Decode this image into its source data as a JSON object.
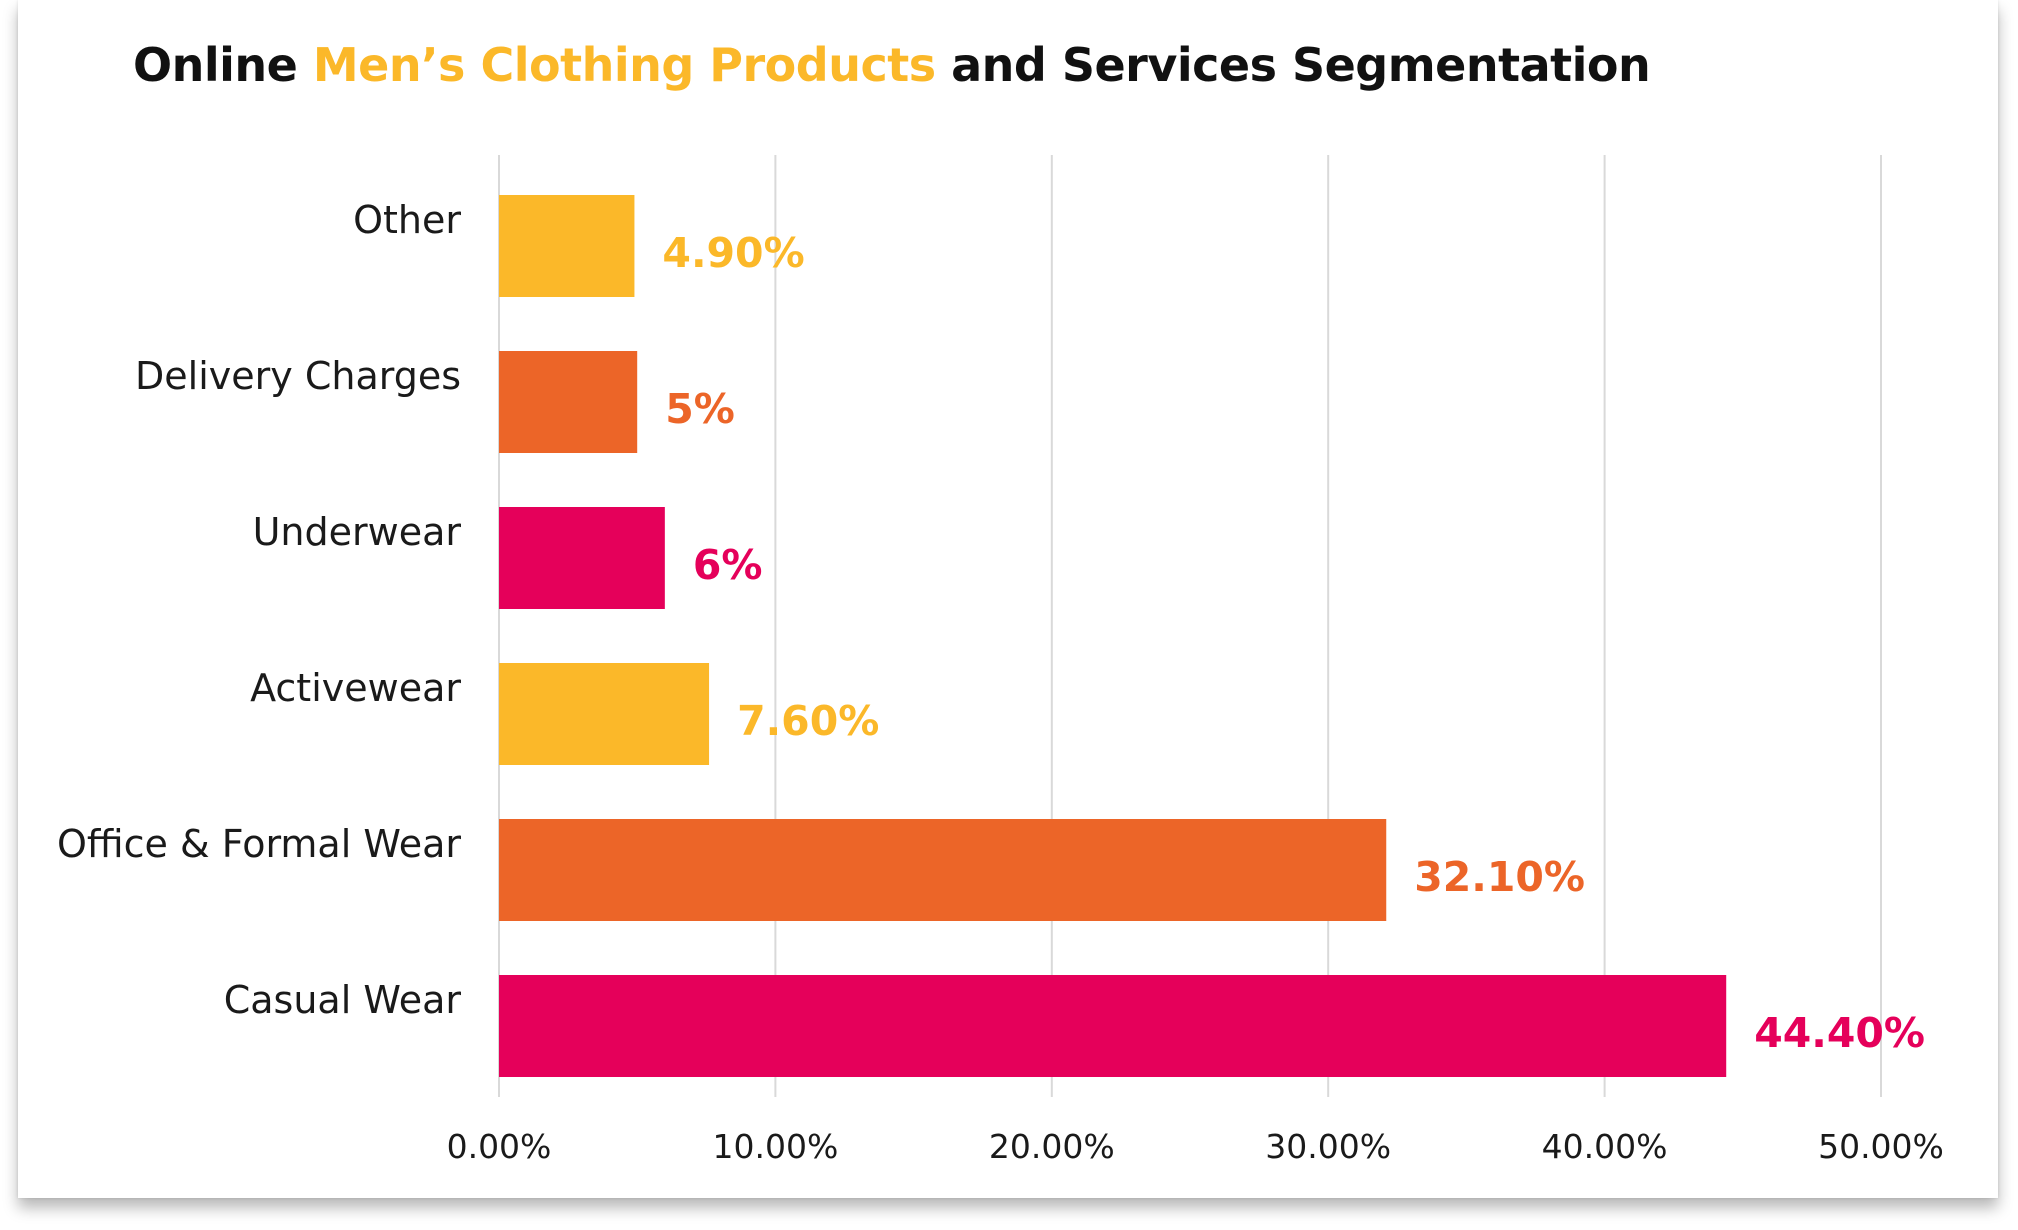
{
  "chart_data": {
    "type": "bar",
    "orientation": "horizontal",
    "title": {
      "part1": "Online ",
      "highlight": "Men’s Clothing Products",
      "part2": " and Services Segmentation"
    },
    "categories": [
      "Other",
      "Delivery Charges",
      "Underwear",
      "Activewear",
      "Office & Formal Wear",
      "Casual Wear"
    ],
    "values": [
      4.9,
      5,
      6,
      7.6,
      32.1,
      44.4
    ],
    "value_labels": [
      "4.90%",
      "5%",
      "6%",
      "7.60%",
      "32.10%",
      "44.40%"
    ],
    "bar_colors": [
      "#fbb829",
      "#ec6528",
      "#e5005a",
      "#fbb829",
      "#ec6528",
      "#e5005a"
    ],
    "xlim": [
      0,
      50
    ],
    "x_ticks": [
      0,
      10,
      20,
      30,
      40,
      50
    ],
    "x_tick_labels": [
      "0.00%",
      "10.00%",
      "20.00%",
      "30.00%",
      "40.00%",
      "50.00%"
    ],
    "grid": true,
    "legend": "none"
  },
  "colors": {
    "title_highlight": "#fbb829",
    "gridline": "#d9d9d9",
    "text": "#1a1a1a"
  }
}
